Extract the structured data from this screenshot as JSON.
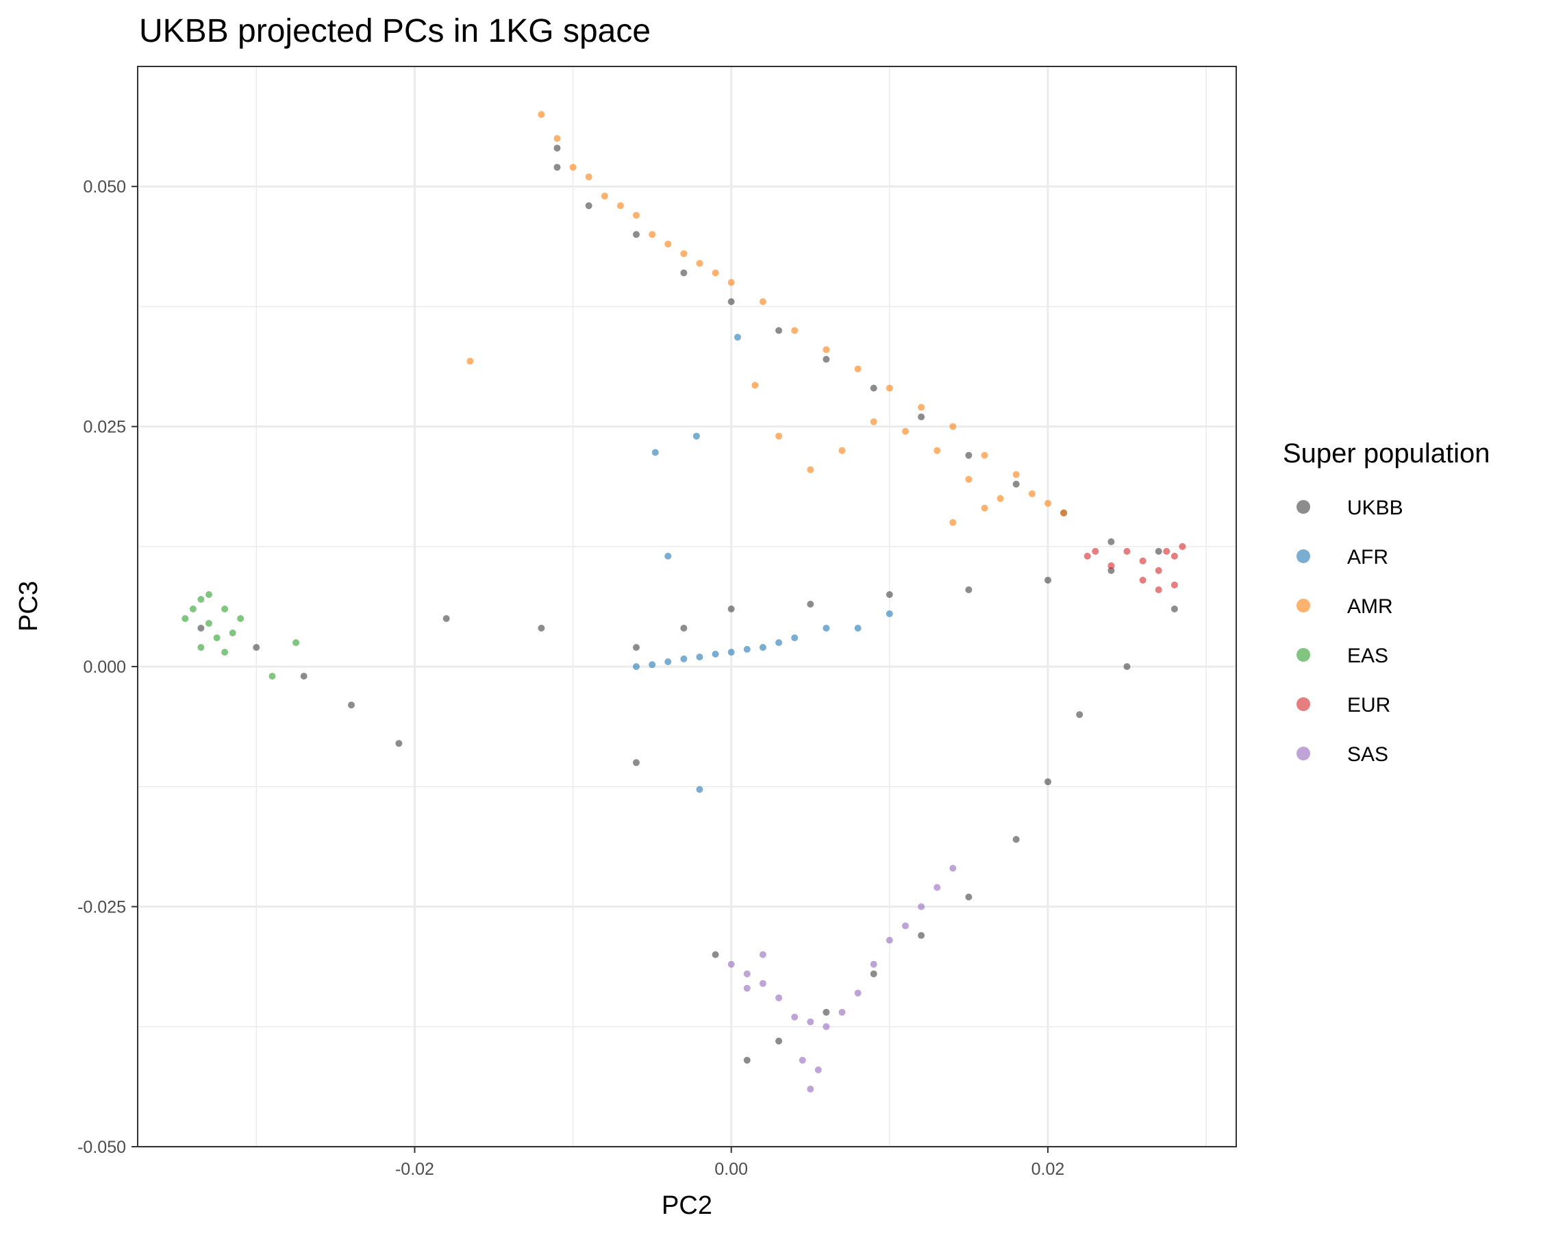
{
  "chart_data": {
    "type": "scatter",
    "title": "UKBB projected PCs in 1KG space",
    "xlabel": "PC2",
    "ylabel": "PC3",
    "xlim": [
      -0.0375,
      0.0319
    ],
    "ylim": [
      -0.05,
      0.0625
    ],
    "x_ticks": [
      -0.02,
      0.0,
      0.02
    ],
    "x_tick_labels": [
      "-0.02",
      "0.00",
      "0.02"
    ],
    "y_ticks": [
      -0.05,
      -0.025,
      0.0,
      0.025,
      0.05
    ],
    "y_tick_labels": [
      "-0.050",
      "-0.025",
      "0.000",
      "0.025",
      "0.050"
    ],
    "grid": true,
    "legend": {
      "title": "Super population",
      "placement": "right",
      "entries": [
        "UKBB",
        "AFR",
        "AMR",
        "EAS",
        "EUR",
        "SAS"
      ]
    },
    "series": [
      {
        "name": "UKBB",
        "color": "#3f3f3f",
        "description": "approximate point-cloud outline (dense arms)",
        "x": [
          -0.0335,
          -0.03,
          -0.027,
          -0.024,
          -0.021,
          -0.018,
          -0.012,
          -0.006,
          -0.003,
          0.0,
          0.005,
          0.01,
          0.015,
          0.02,
          0.024,
          0.027,
          0.028,
          0.025,
          0.022,
          0.02,
          0.018,
          0.015,
          0.012,
          0.009,
          0.006,
          0.003,
          0.001,
          -0.001,
          -0.006,
          -0.011,
          -0.011,
          -0.009,
          -0.006,
          -0.003,
          0.0,
          0.003,
          0.006,
          0.009,
          0.012,
          0.015,
          0.018,
          0.021,
          0.024
        ],
        "y": [
          0.004,
          0.002,
          -0.001,
          -0.004,
          -0.008,
          0.005,
          0.004,
          0.002,
          0.004,
          0.006,
          0.0065,
          0.0075,
          0.008,
          0.009,
          0.01,
          0.012,
          0.006,
          0.0,
          -0.005,
          -0.012,
          -0.018,
          -0.024,
          -0.028,
          -0.032,
          -0.036,
          -0.039,
          -0.041,
          -0.03,
          -0.01,
          0.054,
          0.052,
          0.048,
          0.045,
          0.041,
          0.038,
          0.035,
          0.032,
          0.029,
          0.026,
          0.022,
          0.019,
          0.016,
          0.013
        ]
      },
      {
        "name": "AFR",
        "color": "#1f77b4",
        "x": [
          -0.006,
          -0.005,
          -0.004,
          -0.003,
          -0.002,
          -0.001,
          0.0,
          0.001,
          0.002,
          0.003,
          0.004,
          0.006,
          0.008,
          0.01,
          -0.0048,
          -0.0022,
          -0.004,
          0.0004,
          -0.002
        ],
        "y": [
          0.0,
          0.0002,
          0.0005,
          0.0008,
          0.001,
          0.0013,
          0.0015,
          0.0018,
          0.002,
          0.0025,
          0.003,
          0.004,
          0.004,
          0.0055,
          0.0223,
          0.024,
          0.0115,
          0.0343,
          -0.0128
        ]
      },
      {
        "name": "AMR",
        "color": "#ff7f0e",
        "x": [
          -0.012,
          -0.011,
          -0.01,
          -0.009,
          -0.008,
          -0.007,
          -0.006,
          -0.005,
          -0.004,
          -0.003,
          -0.002,
          -0.001,
          0.0,
          0.002,
          0.004,
          0.006,
          0.008,
          0.01,
          0.012,
          0.014,
          0.016,
          0.018,
          0.019,
          0.02,
          0.021,
          -0.0165,
          0.0015,
          0.003,
          0.005,
          0.007,
          0.009,
          0.011,
          0.013,
          0.015,
          0.017,
          0.014,
          0.016
        ],
        "y": [
          0.0575,
          0.055,
          0.052,
          0.051,
          0.049,
          0.048,
          0.047,
          0.045,
          0.044,
          0.043,
          0.042,
          0.041,
          0.04,
          0.038,
          0.035,
          0.033,
          0.031,
          0.029,
          0.027,
          0.025,
          0.022,
          0.02,
          0.018,
          0.017,
          0.016,
          0.0318,
          0.0293,
          0.024,
          0.0205,
          0.0225,
          0.0255,
          0.0245,
          0.0225,
          0.0195,
          0.0175,
          0.015,
          0.0165
        ]
      },
      {
        "name": "EAS",
        "color": "#2ca02c",
        "x": [
          -0.0345,
          -0.034,
          -0.0335,
          -0.033,
          -0.0325,
          -0.032,
          -0.0315,
          -0.031,
          -0.0335,
          -0.033,
          -0.032,
          -0.0275,
          -0.029
        ],
        "y": [
          0.005,
          0.006,
          0.007,
          0.0045,
          0.003,
          0.006,
          0.0035,
          0.005,
          0.002,
          0.0075,
          0.0015,
          0.0025,
          -0.001
        ]
      },
      {
        "name": "EUR",
        "color": "#d62728",
        "x": [
          0.0225,
          0.023,
          0.024,
          0.025,
          0.026,
          0.027,
          0.0275,
          0.028,
          0.0285,
          0.026,
          0.027,
          0.028
        ],
        "y": [
          0.0115,
          0.012,
          0.0105,
          0.012,
          0.011,
          0.01,
          0.012,
          0.0115,
          0.0125,
          0.009,
          0.008,
          0.0085
        ],
        "note": "dense cluster near (0.026, 0.011)"
      },
      {
        "name": "SAS",
        "color": "#9467bd",
        "x": [
          0.0,
          0.001,
          0.002,
          0.003,
          0.004,
          0.005,
          0.006,
          0.007,
          0.008,
          0.009,
          0.01,
          0.011,
          0.012,
          0.013,
          0.014,
          0.0045,
          0.005,
          0.0055,
          0.001,
          0.002
        ],
        "y": [
          -0.031,
          -0.032,
          -0.033,
          -0.0345,
          -0.0365,
          -0.037,
          -0.0375,
          -0.036,
          -0.034,
          -0.031,
          -0.0285,
          -0.027,
          -0.025,
          -0.023,
          -0.021,
          -0.041,
          -0.044,
          -0.042,
          -0.0335,
          -0.03
        ]
      }
    ]
  }
}
